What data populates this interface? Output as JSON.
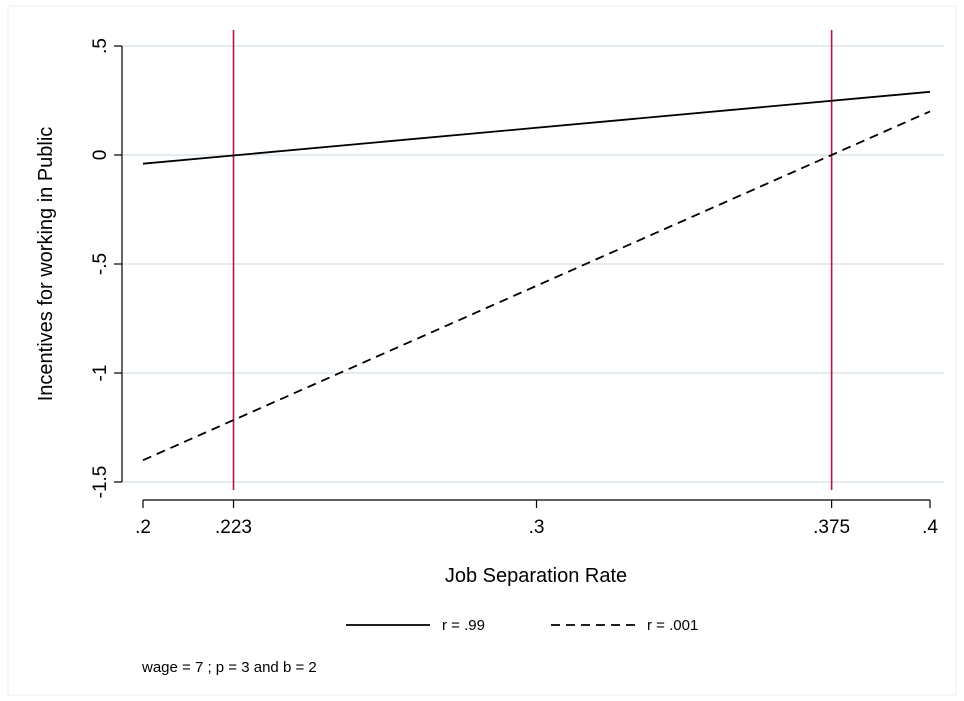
{
  "chart_data": {
    "type": "line",
    "title": "",
    "xlabel": "Job Separation Rate",
    "ylabel": "Incentives for working in Public",
    "xlim": [
      0.2,
      0.4
    ],
    "ylim": [
      -1.5,
      0.5
    ],
    "x_ticks": [
      {
        "value": 0.2,
        "label": ".2"
      },
      {
        "value": 0.223,
        "label": ".223"
      },
      {
        "value": 0.3,
        "label": ".3"
      },
      {
        "value": 0.375,
        "label": ".375"
      },
      {
        "value": 0.4,
        "label": ".4"
      }
    ],
    "y_ticks": [
      {
        "value": -1.5,
        "label": "-1.5"
      },
      {
        "value": -1,
        "label": "-1"
      },
      {
        "value": -0.5,
        "label": "-.5"
      },
      {
        "value": 0,
        "label": "0"
      },
      {
        "value": 0.5,
        "label": ".5"
      }
    ],
    "grid": "horizontal",
    "series": [
      {
        "name": "r = .99",
        "style": "solid",
        "color": "#000000",
        "x": [
          0.2,
          0.4
        ],
        "y": [
          -0.04,
          0.29
        ]
      },
      {
        "name": "r = .001",
        "style": "dashed",
        "color": "#000000",
        "x": [
          0.2,
          0.4
        ],
        "y": [
          -1.4,
          0.2
        ]
      }
    ],
    "vlines": [
      {
        "x": 0.223,
        "color": "#b5173a"
      },
      {
        "x": 0.375,
        "color": "#b5173a"
      }
    ],
    "legend_position": "bottom",
    "note": "wage = 7 ; p = 3 and b = 2"
  }
}
